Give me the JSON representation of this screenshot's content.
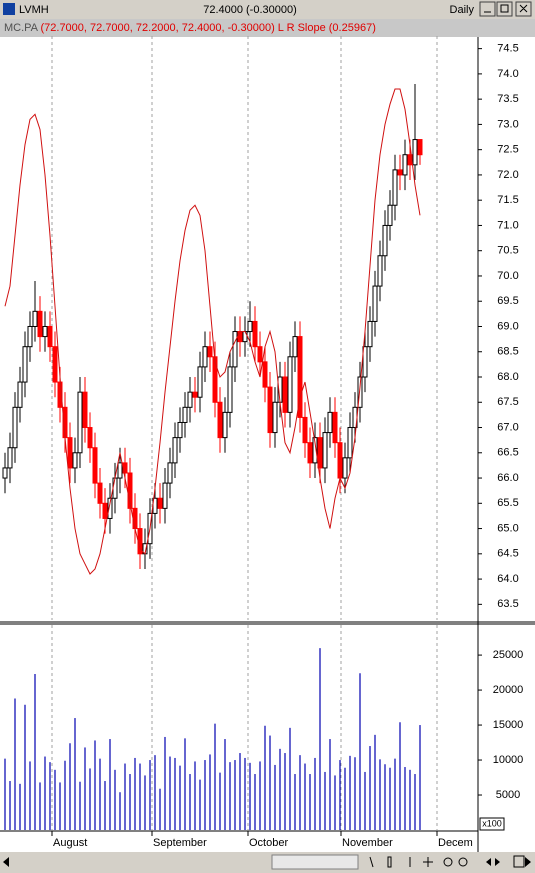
{
  "window": {
    "title": "LVMH",
    "quote": "72.4000 (-0.30000)",
    "period": "Daily"
  },
  "legend": {
    "symbol": "MC.PA",
    "values": "(72.7000, 72.7000, 72.2000, 72.4000, -0.30000)",
    "indicator": "L R Slope",
    "indicator_value": "(0.25967)"
  },
  "chart_data": [
    {
      "type": "candlestick",
      "up_color": "#ffffff",
      "down_color": "#ff0000",
      "wick_color": "#000000",
      "grid": true,
      "xlim": [
        -1,
        94.6
      ],
      "xticks": [
        {
          "value": 9.4,
          "label": "August"
        },
        {
          "value": 29.4,
          "label": "September"
        },
        {
          "value": 48.6,
          "label": "October"
        },
        {
          "value": 67.2,
          "label": "November"
        },
        {
          "value": 86.4,
          "label": "Decem"
        }
      ],
      "ylim": [
        63.19,
        74.75
      ],
      "yticks": [
        {
          "value": 63.5,
          "label": "63.5"
        },
        {
          "value": 64,
          "label": "64.0"
        },
        64.5,
        {
          "value": 65,
          "label": "65.0"
        },
        65.5,
        {
          "value": 66,
          "label": "66.0"
        },
        66.5,
        {
          "value": 67,
          "label": "67.0"
        },
        67.5,
        {
          "value": 68,
          "label": "68.0"
        },
        68.5,
        {
          "value": 69,
          "label": "69.0"
        },
        69.5,
        {
          "value": 70,
          "label": "70.0"
        },
        70.5,
        {
          "value": 71,
          "label": "71.0"
        },
        71.5,
        {
          "value": 72,
          "label": "72.0"
        },
        72.5,
        {
          "value": 73,
          "label": "73.0"
        },
        73.5,
        {
          "value": 74,
          "label": "74.0"
        },
        74.5
      ],
      "x": [
        0,
        1,
        2,
        3,
        4,
        5,
        6,
        7,
        8,
        9,
        10,
        11,
        12,
        13,
        14,
        15,
        16,
        17,
        18,
        19,
        20,
        21,
        22,
        23,
        24,
        25,
        26,
        27,
        28,
        29,
        30,
        31,
        32,
        33,
        34,
        35,
        36,
        37,
        38,
        39,
        40,
        41,
        42,
        43,
        44,
        45,
        46,
        47,
        48,
        49,
        50,
        51,
        52,
        53,
        54,
        55,
        56,
        57,
        58,
        59,
        60,
        61,
        62,
        63,
        64,
        65,
        66,
        67,
        68,
        69,
        70,
        71,
        72,
        73,
        74,
        75,
        76,
        77,
        78,
        79,
        80,
        81,
        82,
        83
      ],
      "open": [
        66.0,
        66.2,
        66.6,
        67.4,
        67.9,
        68.6,
        69.0,
        69.3,
        68.8,
        69.0,
        68.6,
        67.9,
        67.4,
        66.8,
        66.2,
        66.5,
        67.7,
        67.0,
        66.6,
        65.9,
        65.5,
        65.2,
        65.6,
        66.0,
        66.3,
        66.1,
        65.4,
        65.0,
        64.5,
        64.7,
        65.3,
        65.6,
        65.4,
        65.9,
        66.3,
        66.8,
        67.1,
        67.4,
        67.7,
        67.6,
        68.2,
        68.6,
        68.4,
        67.5,
        66.8,
        67.3,
        68.2,
        68.9,
        68.7,
        68.9,
        69.1,
        68.6,
        68.3,
        67.8,
        66.9,
        67.5,
        68.0,
        67.3,
        68.4,
        68.8,
        67.2,
        66.7,
        66.3,
        66.8,
        66.2,
        66.9,
        67.3,
        66.7,
        66.0,
        66.4,
        67.0,
        67.4,
        68.0,
        68.6,
        69.1,
        69.8,
        70.4,
        71.0,
        71.4,
        72.1,
        72.0,
        72.4,
        72.2,
        72.7
      ],
      "high": [
        66.5,
        66.9,
        67.7,
        68.2,
        68.9,
        69.3,
        69.9,
        69.6,
        69.3,
        69.3,
        68.9,
        68.2,
        67.7,
        67.1,
        66.8,
        68.0,
        68.0,
        67.3,
        66.9,
        66.2,
        65.8,
        65.9,
        66.3,
        66.6,
        66.6,
        66.4,
        65.7,
        65.3,
        65.0,
        65.6,
        65.9,
        65.9,
        66.2,
        66.6,
        67.1,
        67.4,
        67.7,
        68.0,
        68.0,
        68.5,
        68.9,
        68.9,
        68.7,
        67.8,
        67.6,
        68.5,
        69.2,
        69.2,
        69.2,
        69.5,
        69.4,
        68.9,
        68.6,
        68.1,
        67.8,
        68.3,
        68.3,
        68.7,
        69.1,
        69.1,
        67.5,
        67.0,
        67.1,
        67.1,
        67.2,
        67.6,
        67.6,
        67.0,
        66.7,
        67.3,
        67.7,
        68.3,
        68.9,
        69.4,
        70.1,
        70.7,
        71.3,
        71.7,
        72.4,
        72.4,
        72.7,
        72.7,
        73.8,
        72.7
      ],
      "low": [
        65.7,
        65.9,
        66.3,
        67.1,
        67.6,
        68.3,
        68.7,
        68.5,
        68.5,
        68.3,
        67.6,
        67.1,
        66.5,
        65.9,
        65.9,
        66.2,
        66.7,
        66.3,
        65.6,
        65.2,
        64.9,
        64.9,
        65.3,
        65.7,
        65.8,
        65.1,
        64.7,
        64.2,
        64.2,
        64.4,
        65.0,
        65.1,
        65.1,
        65.6,
        66.0,
        66.5,
        66.8,
        67.1,
        67.3,
        67.3,
        67.9,
        68.1,
        67.2,
        66.5,
        66.5,
        67.0,
        67.9,
        68.4,
        68.4,
        68.6,
        68.3,
        68.0,
        67.5,
        66.6,
        66.6,
        67.2,
        67.0,
        67.0,
        68.1,
        66.9,
        66.4,
        66.0,
        66.0,
        65.9,
        65.9,
        66.6,
        66.4,
        65.7,
        65.7,
        66.1,
        66.7,
        67.1,
        67.7,
        68.3,
        68.8,
        69.5,
        70.1,
        70.7,
        71.1,
        71.7,
        71.7,
        71.9,
        71.9,
        72.2
      ],
      "close": [
        66.2,
        66.6,
        67.4,
        67.9,
        68.6,
        69.0,
        69.3,
        68.8,
        69.0,
        68.6,
        67.9,
        67.4,
        66.8,
        66.2,
        66.5,
        67.7,
        67.0,
        66.6,
        65.9,
        65.5,
        65.2,
        65.6,
        66.0,
        66.3,
        66.1,
        65.4,
        65.0,
        64.5,
        64.7,
        65.3,
        65.6,
        65.4,
        65.9,
        66.3,
        66.8,
        67.1,
        67.4,
        67.7,
        67.6,
        68.2,
        68.6,
        68.4,
        67.5,
        66.8,
        67.3,
        68.2,
        68.9,
        68.7,
        68.9,
        69.1,
        68.6,
        68.3,
        67.8,
        66.9,
        67.5,
        68.0,
        67.3,
        68.4,
        68.8,
        67.2,
        66.7,
        66.3,
        66.8,
        66.2,
        66.9,
        67.3,
        66.7,
        66.0,
        66.4,
        67.0,
        67.4,
        68.0,
        68.6,
        69.1,
        69.8,
        70.4,
        71.0,
        71.4,
        72.1,
        72.0,
        72.4,
        72.2,
        72.7,
        72.4
      ],
      "overlay": {
        "color": "#d01010",
        "values": [
          69.4,
          69.8,
          70.8,
          71.8,
          72.6,
          73.1,
          73.2,
          72.9,
          72.0,
          70.8,
          69.4,
          68.0,
          66.8,
          65.8,
          65.0,
          64.5,
          64.3,
          64.1,
          64.2,
          64.5,
          65.0,
          65.5,
          66.0,
          66.5,
          66.0,
          65.5,
          65.0,
          64.6,
          64.5,
          65.0,
          65.8,
          66.7,
          67.7,
          68.6,
          69.5,
          70.3,
          70.9,
          71.3,
          71.4,
          71.2,
          70.5,
          69.4,
          68.3,
          68.0,
          68.1,
          68.5,
          68.7,
          68.9,
          68.9,
          68.7,
          68.3,
          68.0,
          68.6,
          68.9,
          68.5,
          67.5,
          66.7,
          66.5,
          67.0,
          67.6,
          67.9,
          67.3,
          66.7,
          66.0,
          65.4,
          65.0,
          65.6,
          66.0,
          65.8,
          66.1,
          66.8,
          67.8,
          68.9,
          70.2,
          71.5,
          72.4,
          73.0,
          73.4,
          73.7,
          73.7,
          73.3,
          72.6,
          71.8,
          71.2
        ]
      }
    },
    {
      "type": "bar",
      "color": "#0000b0",
      "unit_label": "x100",
      "ylim": [
        0,
        29300
      ],
      "yticks": [
        5000,
        10000,
        15000,
        20000,
        25000
      ],
      "values": [
        10200,
        7000,
        18800,
        6600,
        17900,
        9800,
        22300,
        6800,
        10500,
        9700,
        8600,
        6800,
        9900,
        12400,
        16000,
        6900,
        11800,
        8800,
        12800,
        10200,
        7000,
        13000,
        8600,
        5400,
        9500,
        8000,
        10300,
        9500,
        7800,
        10000,
        10700,
        5900,
        13300,
        10500,
        10300,
        9200,
        13100,
        8000,
        9800,
        7200,
        10000,
        10800,
        15200,
        8200,
        13000,
        9700,
        10000,
        11000,
        10300,
        9600,
        8000,
        9800,
        14900,
        13500,
        9300,
        11600,
        11000,
        14600,
        8000,
        10700,
        9500,
        8000,
        10300,
        26000,
        8300,
        13000,
        7800,
        10000,
        8900,
        10600,
        10400,
        22400,
        8300,
        12000,
        13600,
        10100,
        9400,
        8900,
        10200,
        15400,
        9000,
        8600,
        8000,
        15000
      ]
    }
  ]
}
